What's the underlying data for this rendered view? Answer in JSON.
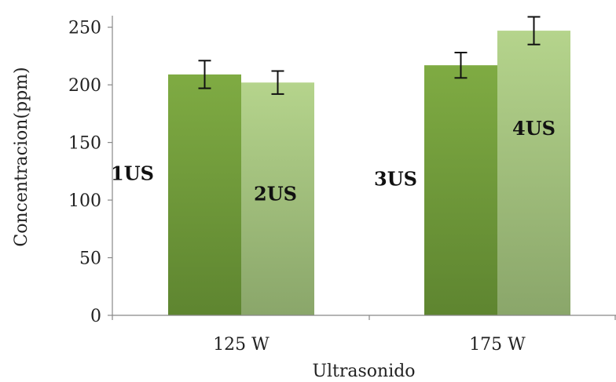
{
  "chart_data": {
    "type": "bar",
    "xlabel": "Ultrasonido",
    "ylabel": "Concentracion(ppm)",
    "ylim": [
      0,
      260
    ],
    "yticks": [
      0,
      50,
      100,
      150,
      200,
      250
    ],
    "categories": [
      "125 W",
      "175 W"
    ],
    "bars": [
      {
        "category": "125 W",
        "label": "1US",
        "value": 209,
        "error": 12,
        "color": "#6f9a3a"
      },
      {
        "category": "125 W",
        "label": "2US",
        "value": 202,
        "error": 10,
        "color": "#a6c77e"
      },
      {
        "category": "175 W",
        "label": "3US",
        "value": 217,
        "error": 11,
        "color": "#6f9a3a"
      },
      {
        "category": "175 W",
        "label": "4US",
        "value": 247,
        "error": 12,
        "color": "#a6c77e"
      }
    ],
    "grid": false,
    "legend": "none"
  }
}
